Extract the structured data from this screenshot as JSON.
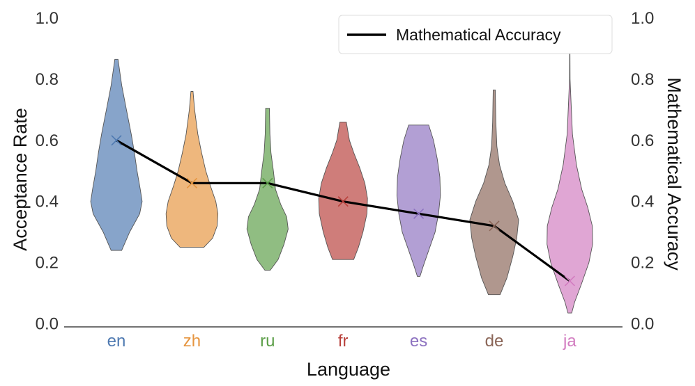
{
  "chart_data": {
    "type": "violin",
    "xlabel": "Language",
    "ylabel": "Acceptance Rate",
    "y2label": "Mathematical Accuracy",
    "ylim": [
      0.0,
      1.0
    ],
    "y2lim": [
      0.0,
      1.0
    ],
    "yticks": [
      "0.0",
      "0.2",
      "0.4",
      "0.6",
      "0.8",
      "1.0"
    ],
    "grid": false,
    "legend": {
      "position": "top-right",
      "entries": [
        "Mathematical Accuracy"
      ]
    },
    "categories": [
      "en",
      "zh",
      "ru",
      "fr",
      "es",
      "de",
      "ja"
    ],
    "colors": [
      "#4e79b1",
      "#e6953f",
      "#5b9e47",
      "#b8403b",
      "#8d72c0",
      "#8b6658",
      "#d27cc0"
    ],
    "violins": [
      {
        "min": 0.24,
        "max": 0.865,
        "profile": [
          [
            0.24,
            0.2
          ],
          [
            0.3,
            0.5
          ],
          [
            0.36,
            0.88
          ],
          [
            0.4,
            0.97
          ],
          [
            0.44,
            0.9
          ],
          [
            0.5,
            0.78
          ],
          [
            0.56,
            0.68
          ],
          [
            0.62,
            0.56
          ],
          [
            0.7,
            0.38
          ],
          [
            0.78,
            0.2
          ],
          [
            0.865,
            0.06
          ]
        ]
      },
      {
        "min": 0.25,
        "max": 0.76,
        "profile": [
          [
            0.25,
            0.45
          ],
          [
            0.28,
            0.78
          ],
          [
            0.32,
            0.95
          ],
          [
            0.36,
            0.98
          ],
          [
            0.4,
            0.9
          ],
          [
            0.45,
            0.7
          ],
          [
            0.5,
            0.52
          ],
          [
            0.56,
            0.36
          ],
          [
            0.62,
            0.22
          ],
          [
            0.7,
            0.1
          ],
          [
            0.76,
            0.04
          ]
        ]
      },
      {
        "min": 0.175,
        "max": 0.705,
        "profile": [
          [
            0.175,
            0.1
          ],
          [
            0.21,
            0.4
          ],
          [
            0.26,
            0.62
          ],
          [
            0.31,
            0.78
          ],
          [
            0.35,
            0.72
          ],
          [
            0.39,
            0.5
          ],
          [
            0.44,
            0.3
          ],
          [
            0.5,
            0.22
          ],
          [
            0.56,
            0.13
          ],
          [
            0.62,
            0.09
          ],
          [
            0.705,
            0.07
          ]
        ]
      },
      {
        "min": 0.21,
        "max": 0.66,
        "profile": [
          [
            0.21,
            0.4
          ],
          [
            0.25,
            0.58
          ],
          [
            0.3,
            0.75
          ],
          [
            0.36,
            0.9
          ],
          [
            0.41,
            0.92
          ],
          [
            0.46,
            0.82
          ],
          [
            0.51,
            0.63
          ],
          [
            0.56,
            0.4
          ],
          [
            0.6,
            0.24
          ],
          [
            0.66,
            0.12
          ]
        ]
      },
      {
        "min": 0.155,
        "max": 0.65,
        "profile": [
          [
            0.155,
            0.05
          ],
          [
            0.19,
            0.18
          ],
          [
            0.24,
            0.38
          ],
          [
            0.3,
            0.62
          ],
          [
            0.36,
            0.75
          ],
          [
            0.42,
            0.82
          ],
          [
            0.48,
            0.8
          ],
          [
            0.54,
            0.7
          ],
          [
            0.6,
            0.56
          ],
          [
            0.65,
            0.38
          ]
        ]
      },
      {
        "min": 0.095,
        "max": 0.765,
        "profile": [
          [
            0.095,
            0.22
          ],
          [
            0.15,
            0.48
          ],
          [
            0.22,
            0.7
          ],
          [
            0.28,
            0.85
          ],
          [
            0.34,
            0.92
          ],
          [
            0.4,
            0.7
          ],
          [
            0.46,
            0.4
          ],
          [
            0.52,
            0.2
          ],
          [
            0.58,
            0.1
          ],
          [
            0.66,
            0.06
          ],
          [
            0.765,
            0.04
          ]
        ]
      },
      {
        "min": 0.035,
        "max": 0.91,
        "profile": [
          [
            0.035,
            0.07
          ],
          [
            0.07,
            0.18
          ],
          [
            0.13,
            0.44
          ],
          [
            0.2,
            0.72
          ],
          [
            0.26,
            0.86
          ],
          [
            0.32,
            0.85
          ],
          [
            0.38,
            0.68
          ],
          [
            0.44,
            0.45
          ],
          [
            0.52,
            0.25
          ],
          [
            0.62,
            0.1
          ],
          [
            0.74,
            0.04
          ],
          [
            0.8,
            0.01
          ],
          [
            0.91,
            0.005
          ]
        ]
      }
    ],
    "series": [
      {
        "name": "Mathematical Accuracy",
        "axis": "right",
        "color": "#000000",
        "values": [
          0.6,
          0.46,
          0.46,
          0.4,
          0.36,
          0.32,
          0.14
        ]
      }
    ]
  }
}
